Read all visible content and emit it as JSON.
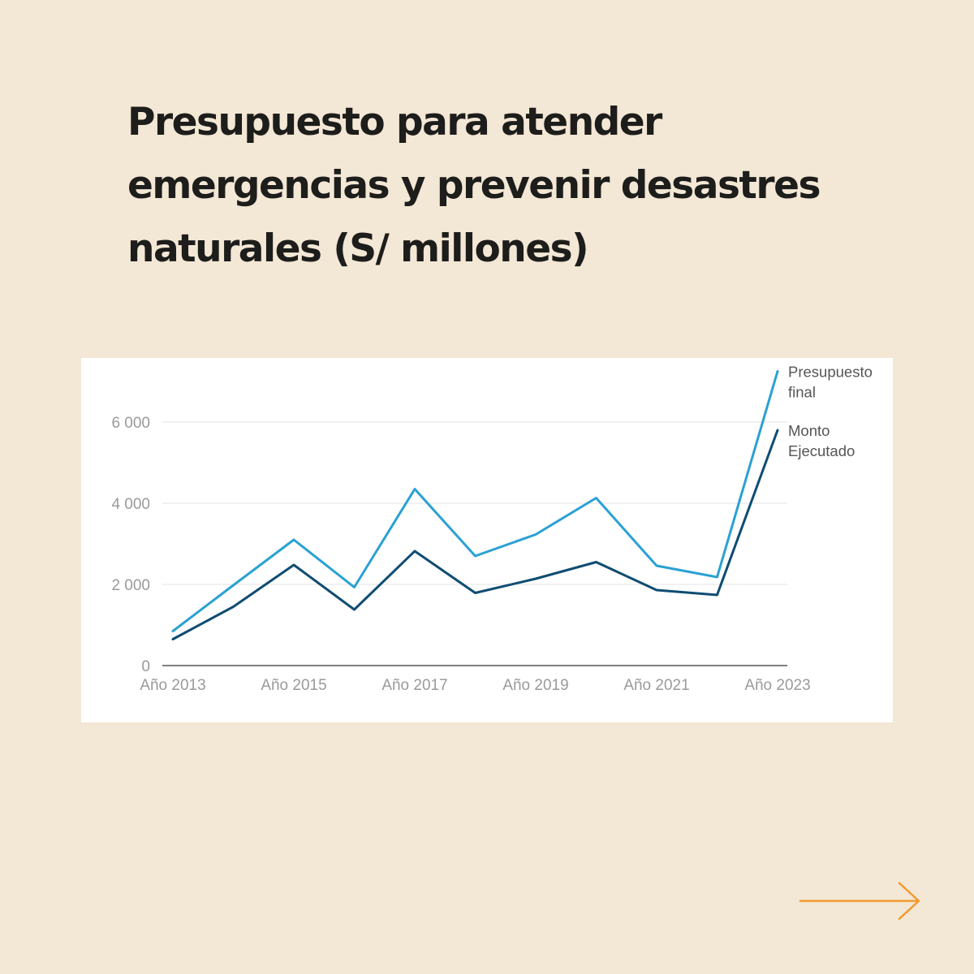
{
  "page": {
    "title_lines": [
      "Presupuesto para atender",
      "emergencias y prevenir desastres",
      "naturales (S/ millones)"
    ]
  },
  "chart_data": {
    "type": "line",
    "title": "Presupuesto para atender emergencias y prevenir desastres naturales (S/ millones)",
    "x": [
      "2013",
      "2014",
      "2015",
      "2016",
      "2017",
      "2018",
      "2019",
      "2020",
      "2021",
      "2022",
      "2023"
    ],
    "x_tick_labels": [
      "Año 2013",
      "Año 2015",
      "Año 2017",
      "Año 2019",
      "Año 2021",
      "Año 2023"
    ],
    "x_tick_indices": [
      0,
      2,
      4,
      6,
      8,
      10
    ],
    "y_ticks": [
      0,
      2000,
      4000,
      6000
    ],
    "y_tick_labels": [
      "0",
      "2 000",
      "4 000",
      "6 000"
    ],
    "ylim": [
      0,
      7200
    ],
    "grid": true,
    "legend": "end-of-line labels",
    "series": [
      {
        "name": "Presupuesto final",
        "label_lines": [
          "Presupuesto",
          "final"
        ],
        "color": "#2aa1d3",
        "values": [
          850,
          1980,
          3100,
          1930,
          4350,
          2700,
          3230,
          4130,
          2460,
          2180,
          7250
        ]
      },
      {
        "name": "Monto Ejecutado",
        "label_lines": [
          "Monto",
          "Ejecutado"
        ],
        "color": "#0f4c72",
        "values": [
          650,
          1450,
          2480,
          1380,
          2820,
          1790,
          2140,
          2550,
          1860,
          1740,
          5800
        ]
      }
    ]
  },
  "footer": {
    "next_icon": "arrow-right-icon",
    "accent_color": "#f29a2e"
  }
}
